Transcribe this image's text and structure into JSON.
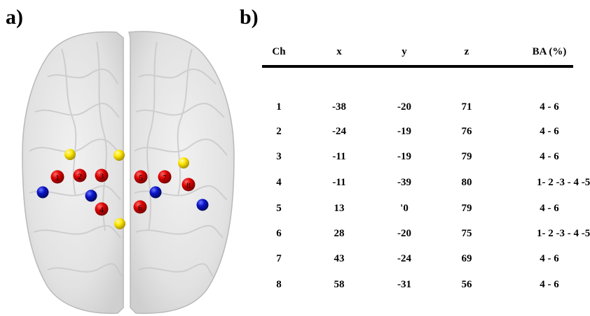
{
  "panels": {
    "a_label": "a)",
    "b_label": "b)"
  },
  "brain": {
    "channel_labels": [
      "1",
      "2",
      "3",
      "4",
      "5",
      "6",
      "7",
      "8"
    ],
    "colors": {
      "channel": "#d40000",
      "yellow_marker": "#ffe600",
      "blue_marker": "#0a14c8",
      "brain_fill": "#e4e4e4"
    }
  },
  "table": {
    "columns": [
      "Ch",
      "x",
      "y",
      "z",
      "BA (%)"
    ],
    "rows": [
      {
        "ch": "1",
        "x": "-38",
        "y": "-20",
        "z": "71",
        "ba": "4 - 6"
      },
      {
        "ch": "2",
        "x": "-24",
        "y": "-19",
        "z": "76",
        "ba": "4 - 6"
      },
      {
        "ch": "3",
        "x": "-11",
        "y": "-19",
        "z": "79",
        "ba": "4 - 6"
      },
      {
        "ch": "4",
        "x": "-11",
        "y": "-39",
        "z": "80",
        "ba": "1- 2 -3 - 4 -5"
      },
      {
        "ch": "5",
        "x": "13",
        "y": "'0",
        "z": "79",
        "ba": "4 - 6"
      },
      {
        "ch": "6",
        "x": "28",
        "y": "-20",
        "z": "75",
        "ba": "1- 2 -3 - 4 -5"
      },
      {
        "ch": "7",
        "x": "43",
        "y": "-24",
        "z": "69",
        "ba": "4 - 6"
      },
      {
        "ch": "8",
        "x": "58",
        "y": "-31",
        "z": "56",
        "ba": "4 - 6"
      }
    ]
  }
}
